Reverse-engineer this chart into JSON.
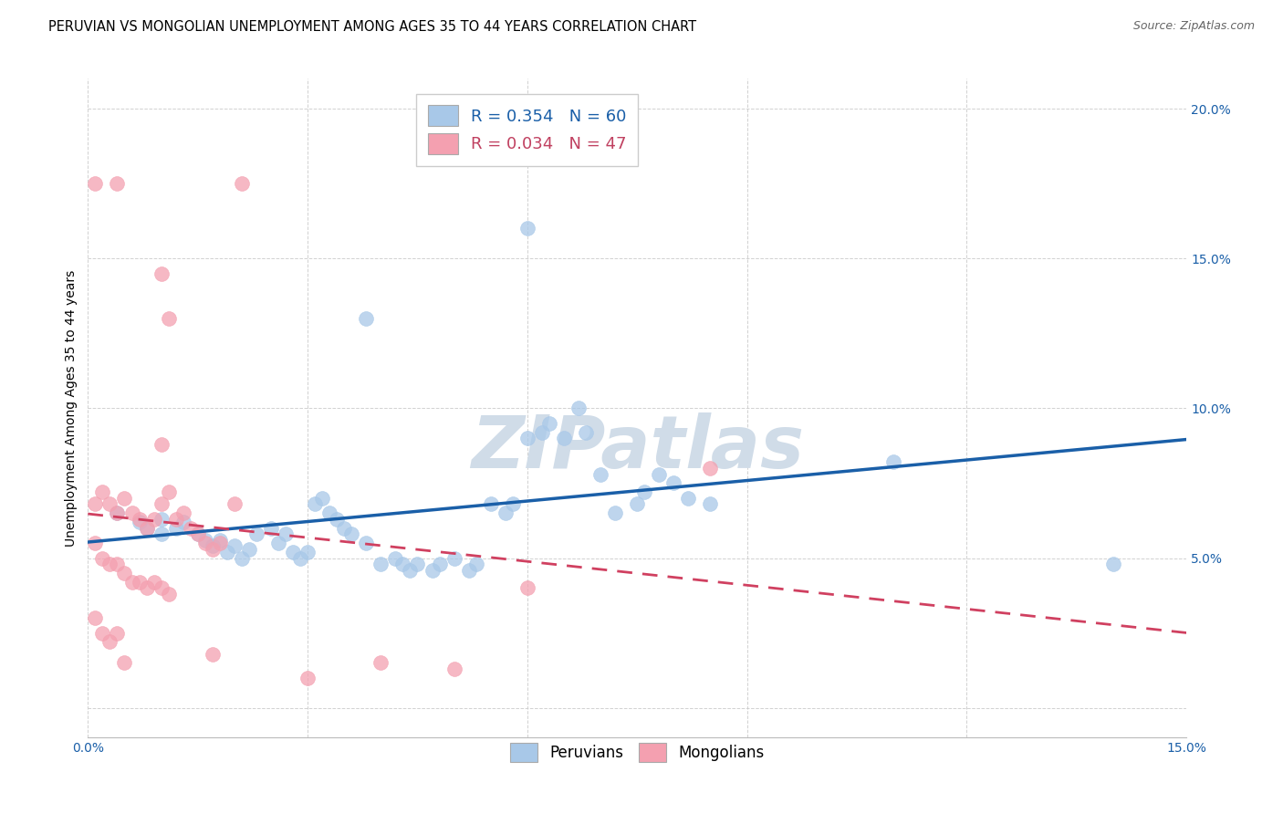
{
  "title": "PERUVIAN VS MONGOLIAN UNEMPLOYMENT AMONG AGES 35 TO 44 YEARS CORRELATION CHART",
  "source": "Source: ZipAtlas.com",
  "ylabel": "Unemployment Among Ages 35 to 44 years",
  "xlim": [
    0.0,
    0.15
  ],
  "ylim": [
    -0.01,
    0.21
  ],
  "xticks": [
    0.0,
    0.03,
    0.06,
    0.09,
    0.12,
    0.15
  ],
  "yticks": [
    0.0,
    0.05,
    0.1,
    0.15,
    0.2
  ],
  "xticklabels": [
    "0.0%",
    "",
    "",
    "",
    "",
    "15.0%"
  ],
  "yticklabels": [
    "",
    "5.0%",
    "10.0%",
    "15.0%",
    "20.0%"
  ],
  "blue_color": "#a8c8e8",
  "pink_color": "#f4a0b0",
  "blue_line_color": "#1a5fa8",
  "pink_line_color": "#d04060",
  "legend_text_color": "#1a5fa8",
  "blue_scatter": [
    [
      0.004,
      0.065
    ],
    [
      0.007,
      0.062
    ],
    [
      0.008,
      0.06
    ],
    [
      0.01,
      0.058
    ],
    [
      0.01,
      0.063
    ],
    [
      0.012,
      0.06
    ],
    [
      0.013,
      0.062
    ],
    [
      0.015,
      0.058
    ],
    [
      0.016,
      0.056
    ],
    [
      0.017,
      0.054
    ],
    [
      0.018,
      0.056
    ],
    [
      0.019,
      0.052
    ],
    [
      0.02,
      0.054
    ],
    [
      0.021,
      0.05
    ],
    [
      0.022,
      0.053
    ],
    [
      0.023,
      0.058
    ],
    [
      0.025,
      0.06
    ],
    [
      0.026,
      0.055
    ],
    [
      0.027,
      0.058
    ],
    [
      0.028,
      0.052
    ],
    [
      0.029,
      0.05
    ],
    [
      0.03,
      0.052
    ],
    [
      0.031,
      0.068
    ],
    [
      0.032,
      0.07
    ],
    [
      0.033,
      0.065
    ],
    [
      0.034,
      0.063
    ],
    [
      0.035,
      0.06
    ],
    [
      0.036,
      0.058
    ],
    [
      0.038,
      0.055
    ],
    [
      0.04,
      0.048
    ],
    [
      0.042,
      0.05
    ],
    [
      0.043,
      0.048
    ],
    [
      0.044,
      0.046
    ],
    [
      0.045,
      0.048
    ],
    [
      0.047,
      0.046
    ],
    [
      0.048,
      0.048
    ],
    [
      0.05,
      0.05
    ],
    [
      0.052,
      0.046
    ],
    [
      0.053,
      0.048
    ],
    [
      0.038,
      0.13
    ],
    [
      0.055,
      0.068
    ],
    [
      0.057,
      0.065
    ],
    [
      0.058,
      0.068
    ],
    [
      0.06,
      0.09
    ],
    [
      0.062,
      0.092
    ],
    [
      0.063,
      0.095
    ],
    [
      0.065,
      0.09
    ],
    [
      0.06,
      0.16
    ],
    [
      0.067,
      0.1
    ],
    [
      0.068,
      0.092
    ],
    [
      0.07,
      0.078
    ],
    [
      0.072,
      0.065
    ],
    [
      0.075,
      0.068
    ],
    [
      0.076,
      0.072
    ],
    [
      0.078,
      0.078
    ],
    [
      0.08,
      0.075
    ],
    [
      0.082,
      0.07
    ],
    [
      0.085,
      0.068
    ],
    [
      0.11,
      0.082
    ],
    [
      0.14,
      0.048
    ]
  ],
  "pink_scatter": [
    [
      0.001,
      0.175
    ],
    [
      0.004,
      0.175
    ],
    [
      0.021,
      0.175
    ],
    [
      0.01,
      0.145
    ],
    [
      0.011,
      0.13
    ],
    [
      0.01,
      0.088
    ],
    [
      0.001,
      0.068
    ],
    [
      0.002,
      0.072
    ],
    [
      0.003,
      0.068
    ],
    [
      0.004,
      0.065
    ],
    [
      0.005,
      0.07
    ],
    [
      0.006,
      0.065
    ],
    [
      0.007,
      0.063
    ],
    [
      0.008,
      0.06
    ],
    [
      0.009,
      0.063
    ],
    [
      0.01,
      0.068
    ],
    [
      0.011,
      0.072
    ],
    [
      0.012,
      0.063
    ],
    [
      0.013,
      0.065
    ],
    [
      0.014,
      0.06
    ],
    [
      0.015,
      0.058
    ],
    [
      0.016,
      0.055
    ],
    [
      0.017,
      0.053
    ],
    [
      0.018,
      0.055
    ],
    [
      0.02,
      0.068
    ],
    [
      0.001,
      0.055
    ],
    [
      0.002,
      0.05
    ],
    [
      0.003,
      0.048
    ],
    [
      0.004,
      0.048
    ],
    [
      0.005,
      0.045
    ],
    [
      0.006,
      0.042
    ],
    [
      0.007,
      0.042
    ],
    [
      0.008,
      0.04
    ],
    [
      0.009,
      0.042
    ],
    [
      0.01,
      0.04
    ],
    [
      0.011,
      0.038
    ],
    [
      0.001,
      0.03
    ],
    [
      0.002,
      0.025
    ],
    [
      0.003,
      0.022
    ],
    [
      0.004,
      0.025
    ],
    [
      0.005,
      0.015
    ],
    [
      0.017,
      0.018
    ],
    [
      0.03,
      0.01
    ],
    [
      0.05,
      0.013
    ],
    [
      0.04,
      0.015
    ],
    [
      0.06,
      0.04
    ],
    [
      0.085,
      0.08
    ]
  ],
  "background_color": "#ffffff",
  "grid_color": "#cccccc",
  "title_fontsize": 10.5,
  "axis_label_fontsize": 10,
  "tick_fontsize": 10,
  "legend_fontsize": 13,
  "watermark_text": "ZIPatlas",
  "watermark_color": "#d0dce8",
  "source_text": "Source: ZipAtlas.com"
}
